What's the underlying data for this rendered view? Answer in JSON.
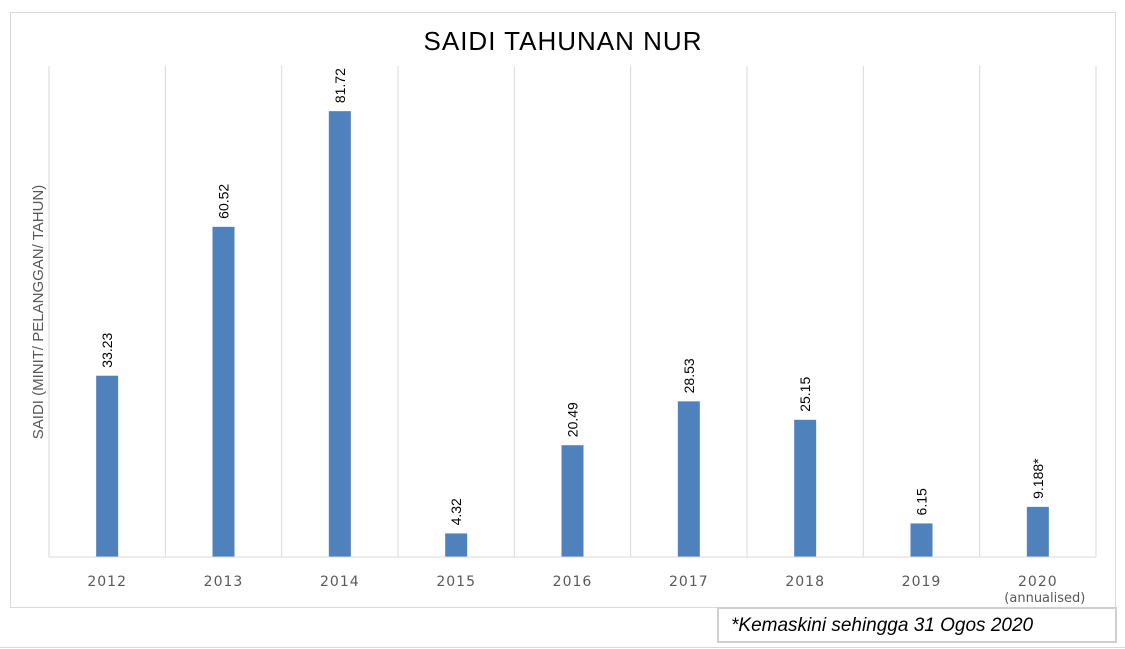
{
  "chart_data": {
    "type": "bar",
    "title": "SAIDI TAHUNAN NUR",
    "ylabel": "SAIDI (MINIT/ PELANGGAN/ TAHUN)",
    "xlabel": "",
    "categories": [
      "2012",
      "2013",
      "2014",
      "2015",
      "2016",
      "2017",
      "2018",
      "2019",
      "2020"
    ],
    "category_sublabels": [
      "",
      "",
      "",
      "",
      "",
      "",
      "",
      "",
      "(annualised)"
    ],
    "values": [
      33.23,
      60.52,
      81.72,
      4.32,
      20.49,
      28.53,
      25.15,
      6.15,
      9.188
    ],
    "data_labels": [
      "33.23",
      "60.52",
      "81.72",
      "4.32",
      "20.49",
      "28.53",
      "25.15",
      "6.15",
      "9.188*"
    ],
    "ylim": [
      0,
      90
    ],
    "grid": "vertical category separators",
    "legend": "none",
    "bar_color": "#4f81bd"
  },
  "footnote": "*Kemaskini sehingga 31 Ogos 2020"
}
